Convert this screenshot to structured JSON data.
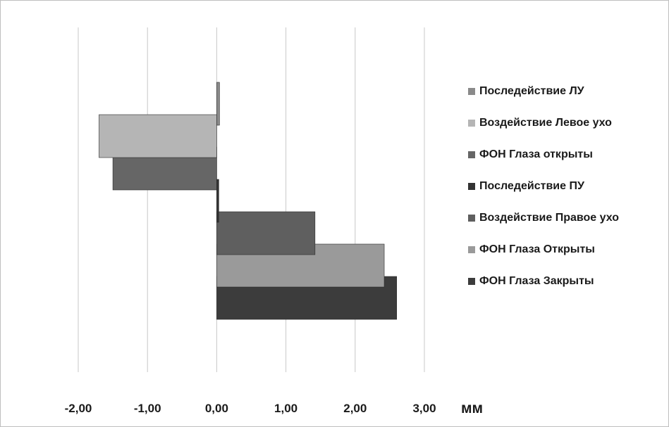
{
  "chart_data": {
    "type": "bar",
    "orientation": "horizontal",
    "x_unit": "мм",
    "xlim": [
      -2,
      3
    ],
    "x_ticks": [
      "-2,00",
      "-1,00",
      "0,00",
      "1,00",
      "2,00",
      "3,00"
    ],
    "grid": true,
    "legend_position": "right",
    "series": [
      {
        "name": "ФОН Глаза Закрыты",
        "value": 2.6,
        "color": "#3c3c3c"
      },
      {
        "name": "ФОН Глаза Открыты",
        "value": 2.42,
        "color": "#9a9a9a"
      },
      {
        "name": "Воздействие Правое ухо",
        "value": 1.42,
        "color": "#5f5f5f"
      },
      {
        "name": "Последействие ПУ",
        "value": 0.03,
        "color": "#333333"
      },
      {
        "name": "ФОН Глаза открыты",
        "value": -1.5,
        "color": "#666666"
      },
      {
        "name": "Воздействие Левое ухо",
        "value": -1.7,
        "color": "#b5b5b5"
      },
      {
        "name": "Последействие ЛУ",
        "value": 0.04,
        "color": "#8a8a8a"
      }
    ]
  }
}
